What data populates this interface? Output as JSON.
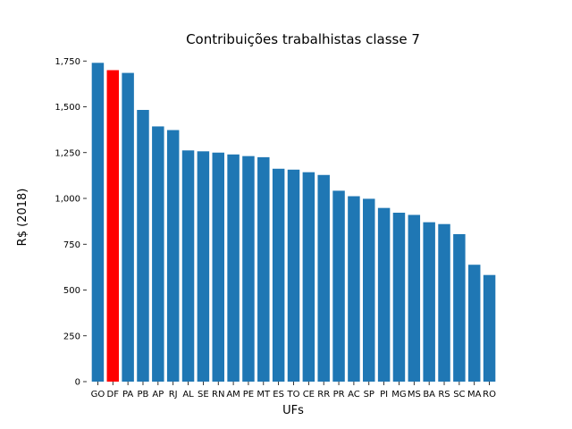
{
  "chart_data": {
    "type": "bar",
    "title": "Contribuições trabalhistas classe 7",
    "xlabel": "UFs",
    "ylabel": "R$ (2018)",
    "categories": [
      "GO",
      "DF",
      "PA",
      "PB",
      "AP",
      "RJ",
      "AL",
      "SE",
      "RN",
      "AM",
      "PE",
      "MT",
      "ES",
      "TO",
      "CE",
      "RR",
      "PR",
      "AC",
      "SP",
      "PI",
      "MG",
      "MS",
      "BA",
      "RS",
      "SC",
      "MA",
      "RO"
    ],
    "values": [
      1740,
      1700,
      1685,
      1483,
      1393,
      1373,
      1262,
      1257,
      1250,
      1240,
      1231,
      1225,
      1162,
      1157,
      1143,
      1128,
      1042,
      1012,
      998,
      948,
      922,
      910,
      870,
      860,
      805,
      638,
      582
    ],
    "highlight": "DF",
    "colors": {
      "default": "#1f77b4",
      "highlight": "#ff0000"
    },
    "ylim": [
      0,
      1800
    ],
    "yticks": [
      0,
      250,
      500,
      750,
      1000,
      1250,
      1500,
      1750
    ],
    "ytick_labels": [
      "0",
      "250",
      "500",
      "750",
      "1,000",
      "1,250",
      "1,500",
      "1,750"
    ],
    "grid": false,
    "legend": "none"
  }
}
